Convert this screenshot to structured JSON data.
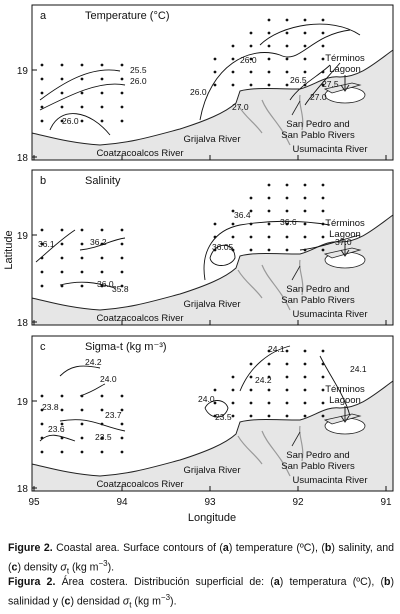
{
  "panels": [
    {
      "letter": "a",
      "title": "Temperature (°C)",
      "contour_labels": [
        "25.5",
        "26.0",
        "26.0",
        "26.0",
        "26.0",
        "26.5",
        "27.0",
        "27.5",
        "27.0"
      ],
      "places": [
        "Términos",
        "Lagoon",
        "Grijalva River",
        "San Pedro and",
        "San Pablo Rivers",
        "Usumacinta River",
        "Coatzacoalcos River"
      ]
    },
    {
      "letter": "b",
      "title": "Salinity",
      "contour_labels": [
        "36.1",
        "36.2",
        "36.0",
        "35.8",
        "36.4",
        "36.6",
        "36.05",
        "37.0"
      ],
      "places": [
        "Términos",
        "Lagoon",
        "Grijalva River",
        "San Pedro and",
        "San Pablo Rivers",
        "Usumacinta River",
        "Coatzacoalcos River"
      ]
    },
    {
      "letter": "c",
      "title": "Sigma-t (kg m⁻³)",
      "contour_labels": [
        "24.2",
        "24.0",
        "23.8",
        "23.7",
        "23.6",
        "23.5",
        "24.0",
        "23.5",
        "24.1",
        "24.2",
        "24.1"
      ],
      "places": [
        "Términos",
        "Lagoon",
        "Grijalva River",
        "San Pedro and",
        "San Pablo Rivers",
        "Usumacinta River",
        "Coatzacoalcos River"
      ]
    }
  ],
  "axes": {
    "x_label": "Longitude",
    "y_label": "Latitude",
    "xticks": [
      95,
      94,
      93,
      92,
      91
    ],
    "yticks": [
      19,
      18
    ]
  },
  "caption": [
    [
      {
        "text": "Figure 2.",
        "style": "bold"
      },
      {
        "text": " Coastal area. Surface contours of (",
        "style": "normal"
      },
      {
        "text": "a",
        "style": "bold"
      },
      {
        "text": ") temperature (ºC), (",
        "style": "normal"
      },
      {
        "text": "b",
        "style": "bold"
      },
      {
        "text": ") salinity, and (",
        "style": "normal"
      },
      {
        "text": "c",
        "style": "bold"
      },
      {
        "text": ") density ",
        "style": "normal"
      },
      {
        "text": "σ",
        "style": "italic"
      },
      {
        "text": "t",
        "style": "sub"
      },
      {
        "text": " (kg m",
        "style": "normal"
      },
      {
        "text": "−3",
        "style": "sup"
      },
      {
        "text": ").",
        "style": "normal"
      }
    ],
    [
      {
        "text": "Figura 2.",
        "style": "bold"
      },
      {
        "text": " Área costera. Distribución superficial de: (",
        "style": "normal"
      },
      {
        "text": "a",
        "style": "bold"
      },
      {
        "text": ") temperatura (ºC), (",
        "style": "normal"
      },
      {
        "text": "b",
        "style": "bold"
      },
      {
        "text": ") salinidad y (",
        "style": "normal"
      },
      {
        "text": "c",
        "style": "bold"
      },
      {
        "text": ") densidad ",
        "style": "normal"
      },
      {
        "text": "σ",
        "style": "italic"
      },
      {
        "text": "t",
        "style": "sub"
      },
      {
        "text": " (kg m",
        "style": "normal"
      },
      {
        "text": "−3",
        "style": "sup"
      },
      {
        "text": ").",
        "style": "normal"
      }
    ]
  ]
}
